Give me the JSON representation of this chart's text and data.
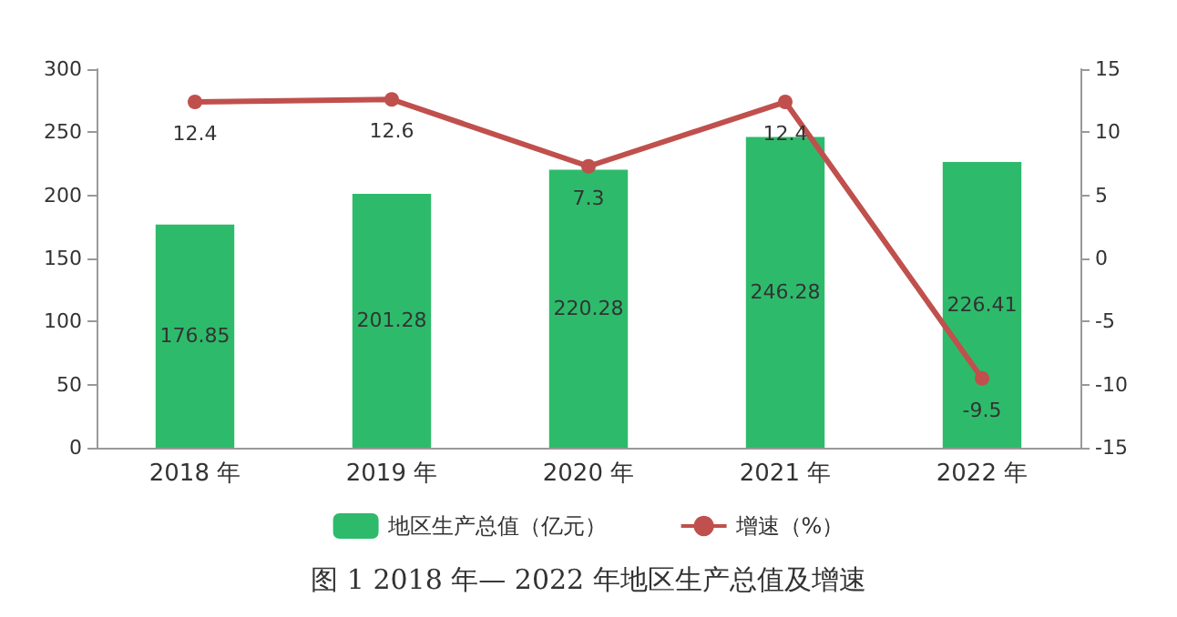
{
  "chart_data": {
    "type": "bar",
    "title": "图 1 2018 年— 2022 年地区生产总值及增速",
    "categories": [
      "2018 年",
      "2019 年",
      "2020 年",
      "2021 年",
      "2022 年"
    ],
    "series": [
      {
        "name": "地区生产总值（亿元）",
        "color": "#2dbb6b",
        "values": [
          176.85,
          201.28,
          220.28,
          246.28,
          226.41
        ]
      },
      {
        "name": "增速（%）",
        "type": "line",
        "axis": "y2",
        "color": "#c0504d",
        "values": [
          12.4,
          12.6,
          7.3,
          12.4,
          -9.5
        ]
      }
    ],
    "ylim": [
      0,
      300
    ],
    "yticks": [
      0,
      50,
      100,
      150,
      200,
      250,
      300
    ],
    "y2lim": [
      -15,
      15
    ],
    "y2ticks": [
      -15,
      -10,
      -5,
      0,
      5,
      10,
      15
    ],
    "data_labels": true,
    "legend": "bottom",
    "grid": false,
    "marker": "circle",
    "line_style": "solid"
  }
}
